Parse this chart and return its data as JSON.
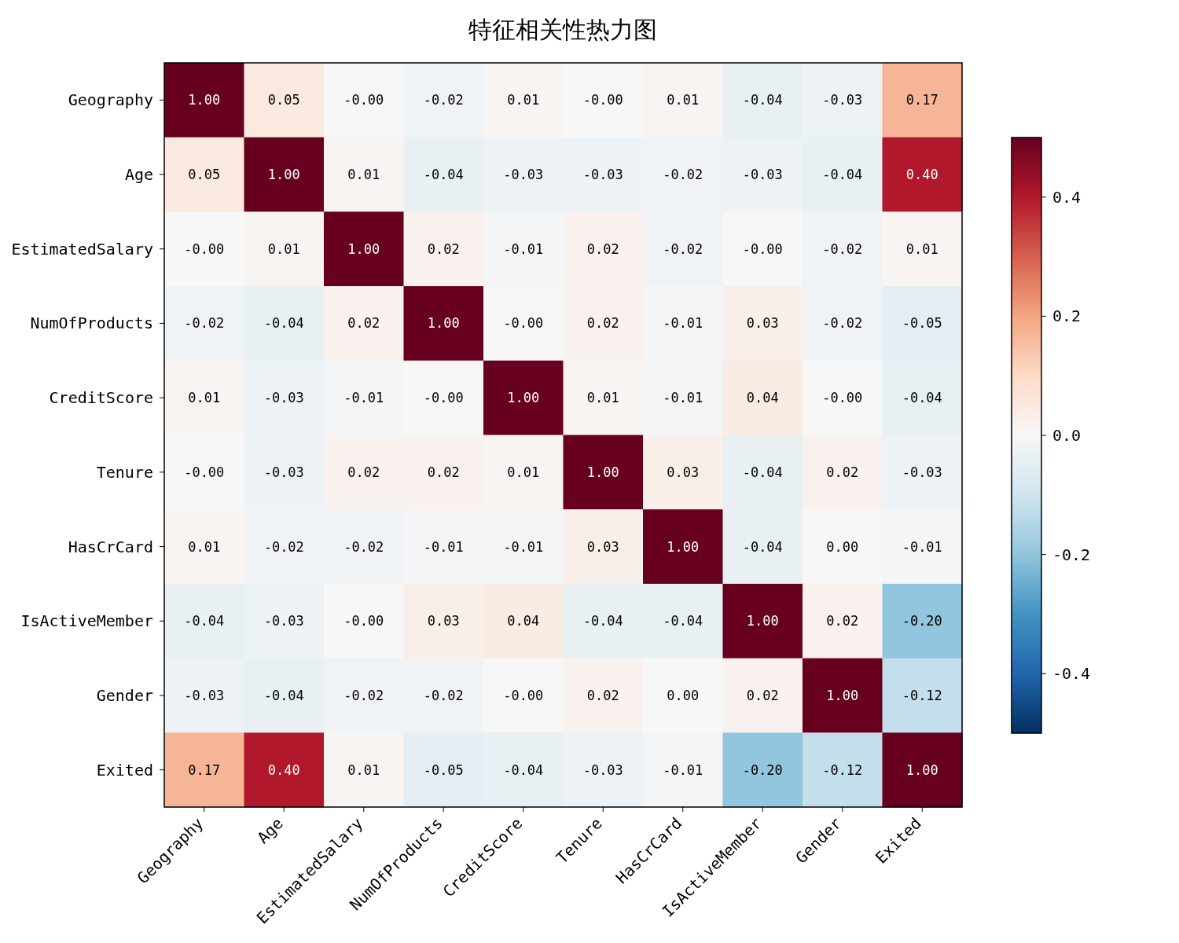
{
  "chart_data": {
    "type": "heatmap",
    "title": "特征相关性热力图",
    "categories": [
      "Geography",
      "Age",
      "EstimatedSalary",
      "NumOfProducts",
      "CreditScore",
      "Tenure",
      "HasCrCard",
      "IsActiveMember",
      "Gender",
      "Exited"
    ],
    "y_categories": [
      "Geography",
      "Age",
      "EstimatedSalary",
      "NumOfProducts",
      "CreditScore",
      "Tenure",
      "HasCrCard",
      "IsActiveMember",
      "Gender",
      "Exited"
    ],
    "cells": [
      [
        1.0,
        0.05,
        0,
        -0.02,
        0.01,
        0,
        0.01,
        -0.04,
        -0.03,
        0.17
      ],
      [
        0.05,
        1.0,
        0.01,
        -0.04,
        -0.03,
        -0.03,
        -0.02,
        -0.03,
        -0.04,
        0.4
      ],
      [
        0,
        0.01,
        1.0,
        0.02,
        -0.01,
        0.02,
        -0.02,
        0,
        -0.02,
        0.01
      ],
      [
        -0.02,
        -0.04,
        0.02,
        1.0,
        0,
        0.02,
        -0.01,
        0.03,
        -0.02,
        -0.05
      ],
      [
        0.01,
        -0.03,
        -0.01,
        0,
        1.0,
        0.01,
        -0.01,
        0.04,
        0,
        -0.04
      ],
      [
        0,
        -0.03,
        0.02,
        0.02,
        0.01,
        1.0,
        0.03,
        -0.04,
        0.02,
        -0.03
      ],
      [
        0.01,
        -0.02,
        -0.02,
        -0.01,
        -0.01,
        0.03,
        1.0,
        -0.04,
        0.0,
        -0.01
      ],
      [
        -0.04,
        -0.03,
        0,
        0.03,
        0.04,
        -0.04,
        -0.04,
        1.0,
        0.02,
        -0.2
      ],
      [
        -0.03,
        -0.04,
        -0.02,
        -0.02,
        0,
        0.02,
        0.0,
        0.02,
        1.0,
        -0.12
      ],
      [
        0.17,
        0.4,
        0.01,
        -0.05,
        -0.04,
        -0.03,
        -0.01,
        -0.2,
        -0.12,
        1.0
      ]
    ],
    "cell_labels": [
      [
        "1.00",
        "0.05",
        "-0.00",
        "-0.02",
        "0.01",
        "-0.00",
        "0.01",
        "-0.04",
        "-0.03",
        "0.17"
      ],
      [
        "0.05",
        "1.00",
        "0.01",
        "-0.04",
        "-0.03",
        "-0.03",
        "-0.02",
        "-0.03",
        "-0.04",
        "0.40"
      ],
      [
        "-0.00",
        "0.01",
        "1.00",
        "0.02",
        "-0.01",
        "0.02",
        "-0.02",
        "-0.00",
        "-0.02",
        "0.01"
      ],
      [
        "-0.02",
        "-0.04",
        "0.02",
        "1.00",
        "-0.00",
        "0.02",
        "-0.01",
        "0.03",
        "-0.02",
        "-0.05"
      ],
      [
        "0.01",
        "-0.03",
        "-0.01",
        "-0.00",
        "1.00",
        "0.01",
        "-0.01",
        "0.04",
        "-0.00",
        "-0.04"
      ],
      [
        "-0.00",
        "-0.03",
        "0.02",
        "0.02",
        "0.01",
        "1.00",
        "0.03",
        "-0.04",
        "0.02",
        "-0.03"
      ],
      [
        "0.01",
        "-0.02",
        "-0.02",
        "-0.01",
        "-0.01",
        "0.03",
        "1.00",
        "-0.04",
        "0.00",
        "-0.01"
      ],
      [
        "-0.04",
        "-0.03",
        "-0.00",
        "0.03",
        "0.04",
        "-0.04",
        "-0.04",
        "1.00",
        "0.02",
        "-0.20"
      ],
      [
        "-0.03",
        "-0.04",
        "-0.02",
        "-0.02",
        "-0.00",
        "0.02",
        "0.00",
        "0.02",
        "1.00",
        "-0.12"
      ],
      [
        "0.17",
        "0.40",
        "0.01",
        "-0.05",
        "-0.04",
        "-0.03",
        "-0.01",
        "-0.20",
        "-0.12",
        "1.00"
      ]
    ],
    "clim": [
      -0.5,
      0.5
    ],
    "cticks": [
      {
        "value": -0.4,
        "label": "-0.4"
      },
      {
        "value": -0.2,
        "label": "-0.2"
      },
      {
        "value": 0,
        "label": "0.0"
      },
      {
        "value": 0.2,
        "label": "0.2"
      },
      {
        "value": 0.4,
        "label": "0.4"
      }
    ]
  }
}
